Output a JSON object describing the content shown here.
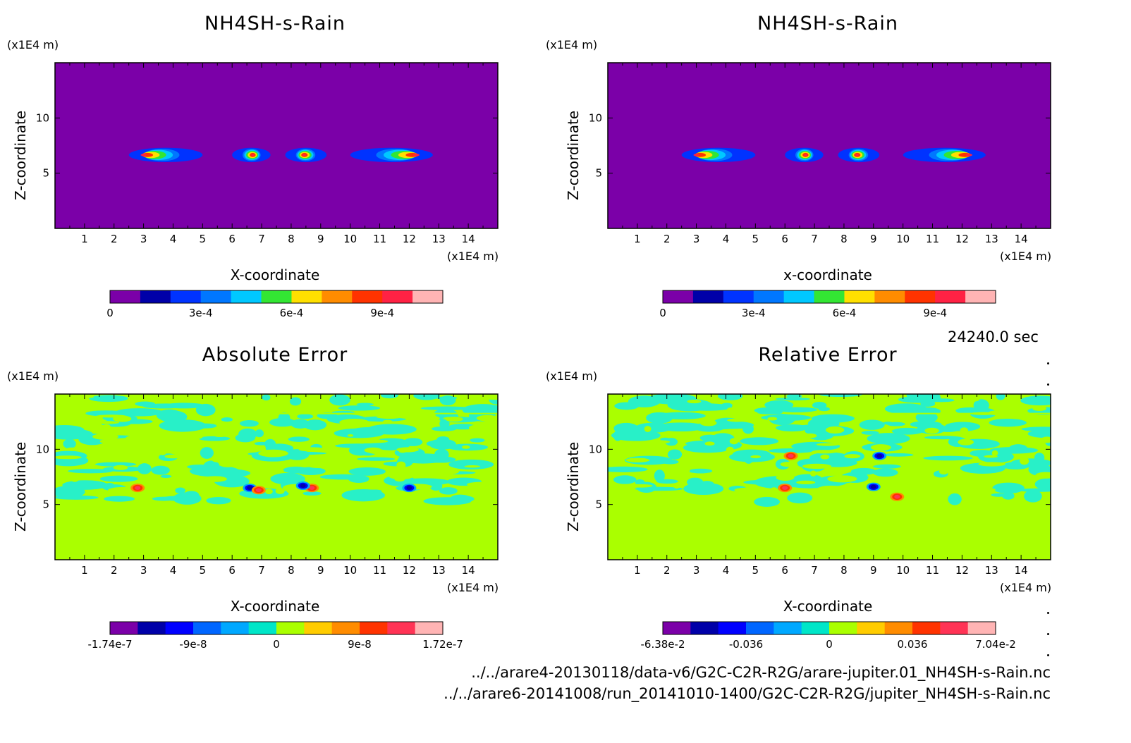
{
  "footer": {
    "time": "24240.0 sec",
    "file1": "../../arare4-20130118/data-v6/G2C-C2R-R2G/arare-jupiter.01_NH4SH-s-Rain.nc",
    "file2": "../../arare6-20141008/run_20141010-1400/G2C-C2R-R2G/jupiter_NH4SH-s-Rain.nc"
  },
  "chart_data": [
    {
      "type": "heatmap",
      "title": "NH4SH-s-Rain",
      "xlabel": "X-coordinate",
      "ylabel": "Z-coordinate",
      "x_unit": "(x1E4 m)",
      "y_unit": "(x1E4 m)",
      "xlim": [
        0,
        15
      ],
      "ylim": [
        0,
        15
      ],
      "xticks": [
        "1",
        "2",
        "3",
        "4",
        "5",
        "6",
        "7",
        "8",
        "9",
        "10",
        "11",
        "12",
        "13",
        "14"
      ],
      "yticks": [
        "5",
        "10"
      ],
      "background": "#7b00a8",
      "blobs": [
        {
          "x": [
            2.5,
            5.0
          ],
          "z": [
            6.0,
            7.3
          ],
          "peak": 0.00095
        },
        {
          "x": [
            6.0,
            7.3
          ],
          "z": [
            6.0,
            7.3
          ],
          "peak": 0.00095
        },
        {
          "x": [
            7.8,
            9.2
          ],
          "z": [
            6.0,
            7.3
          ],
          "peak": 0.00095
        },
        {
          "x": [
            10.0,
            12.8
          ],
          "z": [
            6.0,
            7.3
          ],
          "peak": 0.00095
        }
      ],
      "colorbar": {
        "tick_labels": [
          "0",
          "3e-4",
          "6e-4",
          "9e-4"
        ],
        "colors": [
          "#7b00a8",
          "#0000a8",
          "#0033ff",
          "#0077ff",
          "#00c8ff",
          "#33e633",
          "#ffe000",
          "#ff8c00",
          "#ff3300",
          "#ff2244",
          "#ffb4b4"
        ]
      }
    },
    {
      "type": "heatmap",
      "title": "NH4SH-s-Rain",
      "xlabel": "x-coordinate",
      "ylabel": "Z-coordinate",
      "x_unit": "(x1E4 m)",
      "y_unit": "(x1E4 m)",
      "xlim": [
        0,
        15
      ],
      "ylim": [
        0,
        15
      ],
      "xticks": [
        "1",
        "2",
        "3",
        "4",
        "5",
        "6",
        "7",
        "8",
        "9",
        "10",
        "11",
        "12",
        "13",
        "14"
      ],
      "yticks": [
        "5",
        "10"
      ],
      "background": "#7b00a8",
      "blobs": [
        {
          "x": [
            2.5,
            5.0
          ],
          "z": [
            6.0,
            7.3
          ],
          "peak": 0.00095
        },
        {
          "x": [
            6.0,
            7.3
          ],
          "z": [
            6.0,
            7.3
          ],
          "peak": 0.00095
        },
        {
          "x": [
            7.8,
            9.2
          ],
          "z": [
            6.0,
            7.3
          ],
          "peak": 0.00095
        },
        {
          "x": [
            10.0,
            12.8
          ],
          "z": [
            6.0,
            7.3
          ],
          "peak": 0.00095
        }
      ],
      "colorbar": {
        "tick_labels": [
          "0",
          "3e-4",
          "6e-4",
          "9e-4"
        ],
        "colors": [
          "#7b00a8",
          "#0000a8",
          "#0033ff",
          "#0077ff",
          "#00c8ff",
          "#33e633",
          "#ffe000",
          "#ff8c00",
          "#ff3300",
          "#ff2244",
          "#ffb4b4"
        ]
      }
    },
    {
      "type": "heatmap",
      "title": "Absolute Error",
      "xlabel": "X-coordinate",
      "ylabel": "Z-coordinate",
      "x_unit": "(x1E4 m)",
      "y_unit": "(x1E4 m)",
      "xlim": [
        0,
        15
      ],
      "ylim": [
        0,
        15
      ],
      "xticks": [
        "1",
        "2",
        "3",
        "4",
        "5",
        "6",
        "7",
        "8",
        "9",
        "10",
        "11",
        "12",
        "13",
        "14"
      ],
      "yticks": [
        "5",
        "10"
      ],
      "background": "#aaff00",
      "noise_color": "#28f0c8",
      "features": [
        {
          "x": 2.8,
          "z": 6.5,
          "sign": 1
        },
        {
          "x": 6.6,
          "z": 6.5,
          "sign": -1
        },
        {
          "x": 6.9,
          "z": 6.3,
          "sign": 1
        },
        {
          "x": 8.7,
          "z": 6.5,
          "sign": 1
        },
        {
          "x": 8.4,
          "z": 6.7,
          "sign": -1
        },
        {
          "x": 12.0,
          "z": 6.5,
          "sign": -1
        }
      ],
      "colorbar": {
        "tick_labels": [
          "-1.74e-7",
          "-9e-8",
          "0",
          "9e-8",
          "1.72e-7"
        ],
        "colors": [
          "#7b00a8",
          "#0000a8",
          "#0000ff",
          "#0066ff",
          "#00a8ff",
          "#00e6c8",
          "#aaff00",
          "#ffcc00",
          "#ff8c00",
          "#ff3300",
          "#ff3355",
          "#ffb4b4"
        ]
      }
    },
    {
      "type": "heatmap",
      "title": "Relative Error",
      "xlabel": "X-coordinate",
      "ylabel": "Z-coordinate",
      "x_unit": "(x1E4 m)",
      "y_unit": "(x1E4 m)",
      "xlim": [
        0,
        15
      ],
      "ylim": [
        0,
        15
      ],
      "xticks": [
        "1",
        "2",
        "3",
        "4",
        "5",
        "6",
        "7",
        "8",
        "9",
        "10",
        "11",
        "12",
        "13",
        "14"
      ],
      "yticks": [
        "5",
        "10"
      ],
      "background": "#aaff00",
      "noise_color": "#28f0c8",
      "features": [
        {
          "x": 6.0,
          "z": 6.5,
          "sign": 1
        },
        {
          "x": 9.0,
          "z": 6.6,
          "sign": -1
        },
        {
          "x": 9.8,
          "z": 5.7,
          "sign": 1
        },
        {
          "x": 6.2,
          "z": 9.4,
          "sign": 1
        },
        {
          "x": 9.2,
          "z": 9.4,
          "sign": -1
        }
      ],
      "colorbar": {
        "tick_labels": [
          "-6.38e-2",
          "-0.036",
          "0",
          "0.036",
          "7.04e-2"
        ],
        "colors": [
          "#7b00a8",
          "#0000a8",
          "#0000ff",
          "#0066ff",
          "#00a8ff",
          "#00e6c8",
          "#aaff00",
          "#ffcc00",
          "#ff8c00",
          "#ff3300",
          "#ff3355",
          "#ffb4b4"
        ]
      }
    }
  ]
}
